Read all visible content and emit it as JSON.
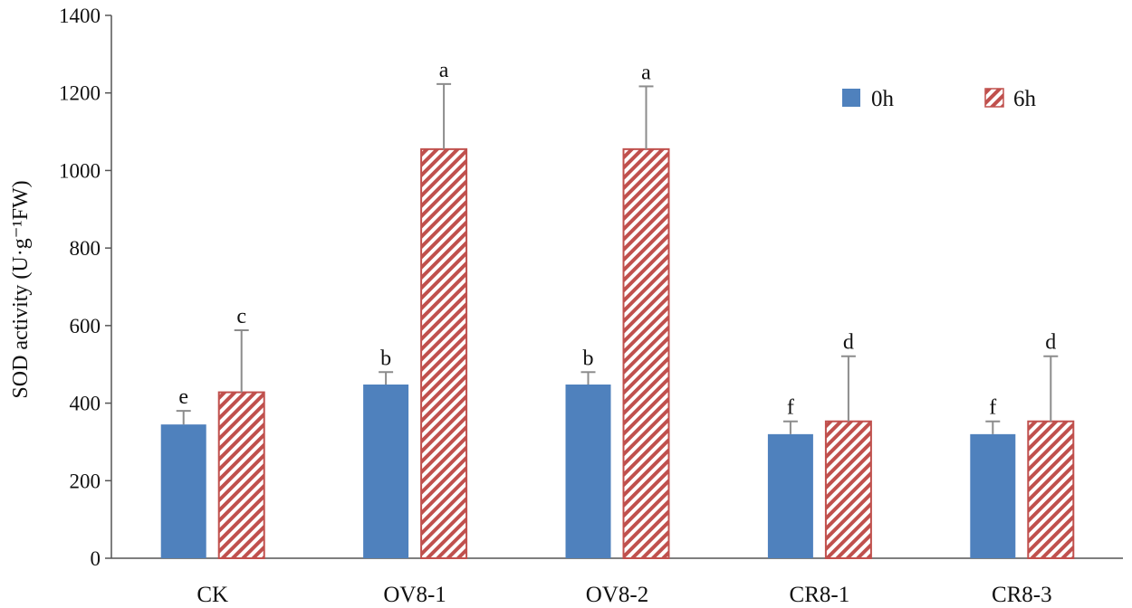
{
  "chart_data": {
    "type": "bar",
    "title": "",
    "xlabel": "",
    "ylabel": "SOD activity (U·g⁻¹FW)",
    "ylim": [
      0,
      1400
    ],
    "yticks": [
      0,
      200,
      400,
      600,
      800,
      1000,
      1200,
      1400
    ],
    "categories": [
      "CK",
      "OV8-1",
      "OV8-2",
      "CR8-1",
      "CR8-3"
    ],
    "series": [
      {
        "name": "0h",
        "color": "#4f81bd",
        "pattern": "solid",
        "values": [
          345,
          448,
          448,
          320,
          320
        ],
        "errors": [
          35,
          32,
          32,
          33,
          33
        ],
        "letters": [
          "e",
          "b",
          "b",
          "f",
          "f"
        ]
      },
      {
        "name": "6h",
        "color": "#c0504d",
        "pattern": "diagonal-hatch",
        "values": [
          428,
          1055,
          1055,
          353,
          353
        ],
        "errors": [
          160,
          168,
          162,
          168,
          168
        ],
        "letters": [
          "c",
          "a",
          "a",
          "d",
          "d"
        ]
      }
    ],
    "legend": {
      "position": "top-right"
    },
    "grid": false
  }
}
